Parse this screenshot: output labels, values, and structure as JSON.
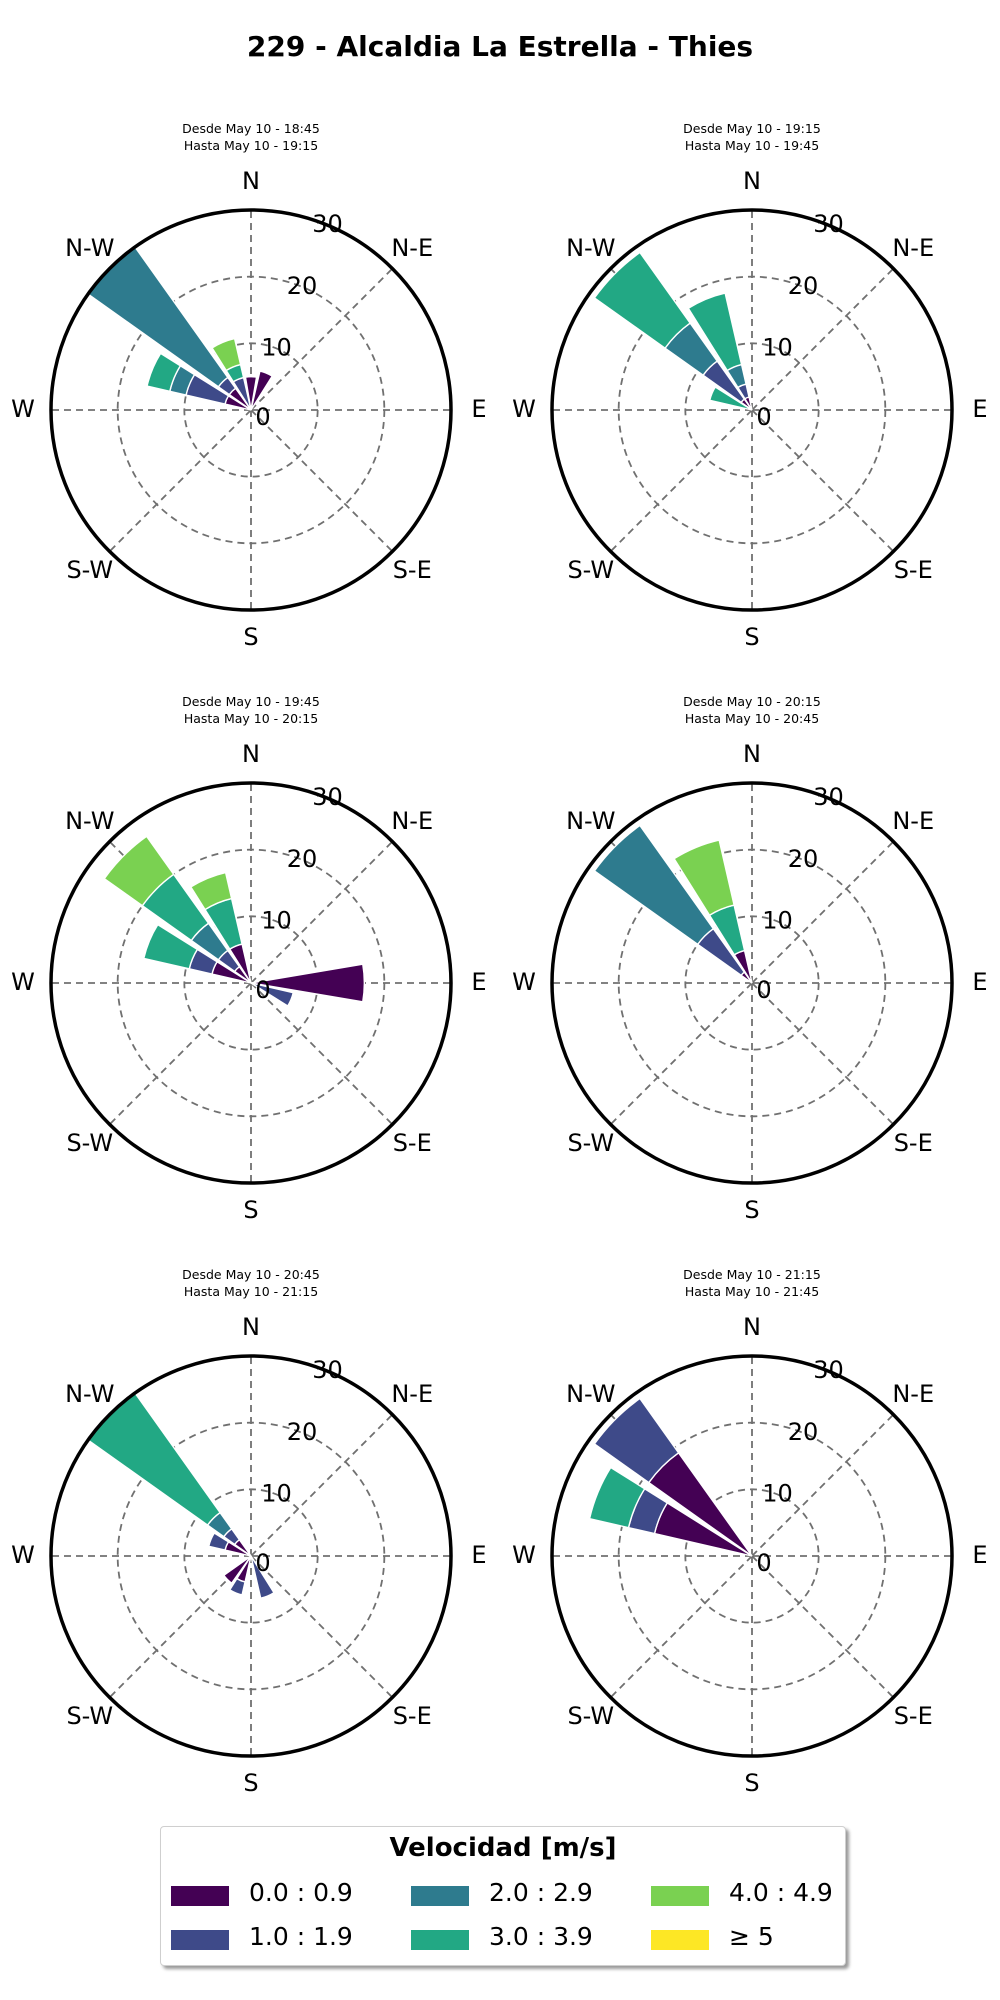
{
  "title": "229 - Alcaldia La Estrella - Thies",
  "colors": {
    "bins": [
      "#440154",
      "#3e4a89",
      "#2e7b8e",
      "#22a884",
      "#7ad151",
      "#fde725"
    ],
    "grid": "#707070",
    "outline": "#000000"
  },
  "legend": {
    "title": "Velocidad [m/s]",
    "labels": [
      "0.0 : 0.9",
      "1.0 : 1.9",
      "2.0 : 2.9",
      "3.0 : 3.9",
      "4.0 : 4.9",
      "≥ 5"
    ]
  },
  "chart_data": [
    {
      "type": "windrose",
      "title_line1": "Desde May 10 - 18:45",
      "title_line2": "Hasta May 10 - 19:15",
      "rlim": [
        0,
        30
      ],
      "rticks": [
        0,
        10,
        20,
        30
      ],
      "directions": [
        "N",
        "N-E",
        "E",
        "S-E",
        "S",
        "S-W",
        "W",
        "N-W"
      ],
      "bars": [
        {
          "angle": 0,
          "stack": [
            5
          ]
        },
        {
          "angle": 22.5,
          "stack": [
            6
          ]
        },
        {
          "angle": 292.5,
          "stack": [
            4,
            6,
            2.5,
            3.5
          ]
        },
        {
          "angle": 315,
          "stack": [
            4,
            2,
            24
          ]
        },
        {
          "angle": 337.5,
          "stack": [
            0,
            5,
            0,
            2,
            4
          ]
        }
      ]
    },
    {
      "type": "windrose",
      "title_line1": "Desde May 10 - 19:15",
      "title_line2": "Hasta May 10 - 19:45",
      "rlim": [
        0,
        30
      ],
      "rticks": [
        0,
        10,
        20,
        30
      ],
      "directions": [
        "N",
        "N-E",
        "E",
        "S-E",
        "S",
        "S-W",
        "W",
        "N-W"
      ],
      "bars": [
        {
          "angle": 292.5,
          "stack": [
            0,
            0,
            0,
            6.5
          ]
        },
        {
          "angle": 315,
          "stack": [
            2,
            7,
            7,
            13
          ]
        },
        {
          "angle": 337.5,
          "stack": [
            2,
            2,
            3,
            11
          ]
        }
      ]
    },
    {
      "type": "windrose",
      "title_line1": "Desde May 10 - 19:45",
      "title_line2": "Hasta May 10 - 20:15",
      "rlim": [
        0,
        30
      ],
      "rticks": [
        0,
        10,
        20,
        30
      ],
      "directions": [
        "N",
        "N-E",
        "E",
        "S-E",
        "S",
        "S-W",
        "W",
        "N-W"
      ],
      "bars": [
        {
          "angle": 90,
          "stack": [
            17
          ]
        },
        {
          "angle": 112.5,
          "stack": [
            0,
            6.5
          ]
        },
        {
          "angle": 292.5,
          "stack": [
            6,
            3.5,
            0,
            7
          ]
        },
        {
          "angle": 315,
          "stack": [
            3,
            3,
            5,
            9,
            7
          ]
        },
        {
          "angle": 337.5,
          "stack": [
            6,
            0,
            0,
            7,
            4
          ]
        }
      ]
    },
    {
      "type": "windrose",
      "title_line1": "Desde May 10 - 20:15",
      "title_line2": "Hasta May 10 - 20:45",
      "rlim": [
        0,
        30
      ],
      "rticks": [
        0,
        10,
        20,
        30
      ],
      "directions": [
        "N",
        "N-E",
        "E",
        "S-E",
        "S",
        "S-W",
        "W",
        "N-W"
      ],
      "bars": [
        {
          "angle": 315,
          "stack": [
            2,
            8,
            19
          ]
        },
        {
          "angle": 337.5,
          "stack": [
            5,
            0,
            0,
            7,
            10
          ]
        }
      ]
    },
    {
      "type": "windrose",
      "title_line1": "Desde May 10 - 20:45",
      "title_line2": "Hasta May 10 - 21:15",
      "rlim": [
        0,
        30
      ],
      "rticks": [
        0,
        10,
        20,
        30
      ],
      "directions": [
        "N",
        "N-E",
        "E",
        "S-E",
        "S",
        "S-W",
        "W",
        "N-W"
      ],
      "bars": [
        {
          "angle": 157.5,
          "stack": [
            0,
            6.5
          ]
        },
        {
          "angle": 202.5,
          "stack": [
            4,
            2
          ]
        },
        {
          "angle": 225,
          "stack": [
            5
          ]
        },
        {
          "angle": 292.5,
          "stack": [
            4,
            2.5
          ]
        },
        {
          "angle": 315,
          "stack": [
            3,
            2,
            3,
            22
          ]
        }
      ]
    },
    {
      "type": "windrose",
      "title_line1": "Desde May 10 - 21:15",
      "title_line2": "Hasta May 10 - 21:45",
      "rlim": [
        0,
        30
      ],
      "rticks": [
        0,
        10,
        20,
        30
      ],
      "directions": [
        "N",
        "N-E",
        "E",
        "S-E",
        "S",
        "S-W",
        "W",
        "N-W"
      ],
      "bars": [
        {
          "angle": 292.5,
          "stack": [
            15,
            4,
            0,
            6
          ]
        },
        {
          "angle": 315,
          "stack": [
            19,
            10
          ]
        }
      ]
    }
  ]
}
